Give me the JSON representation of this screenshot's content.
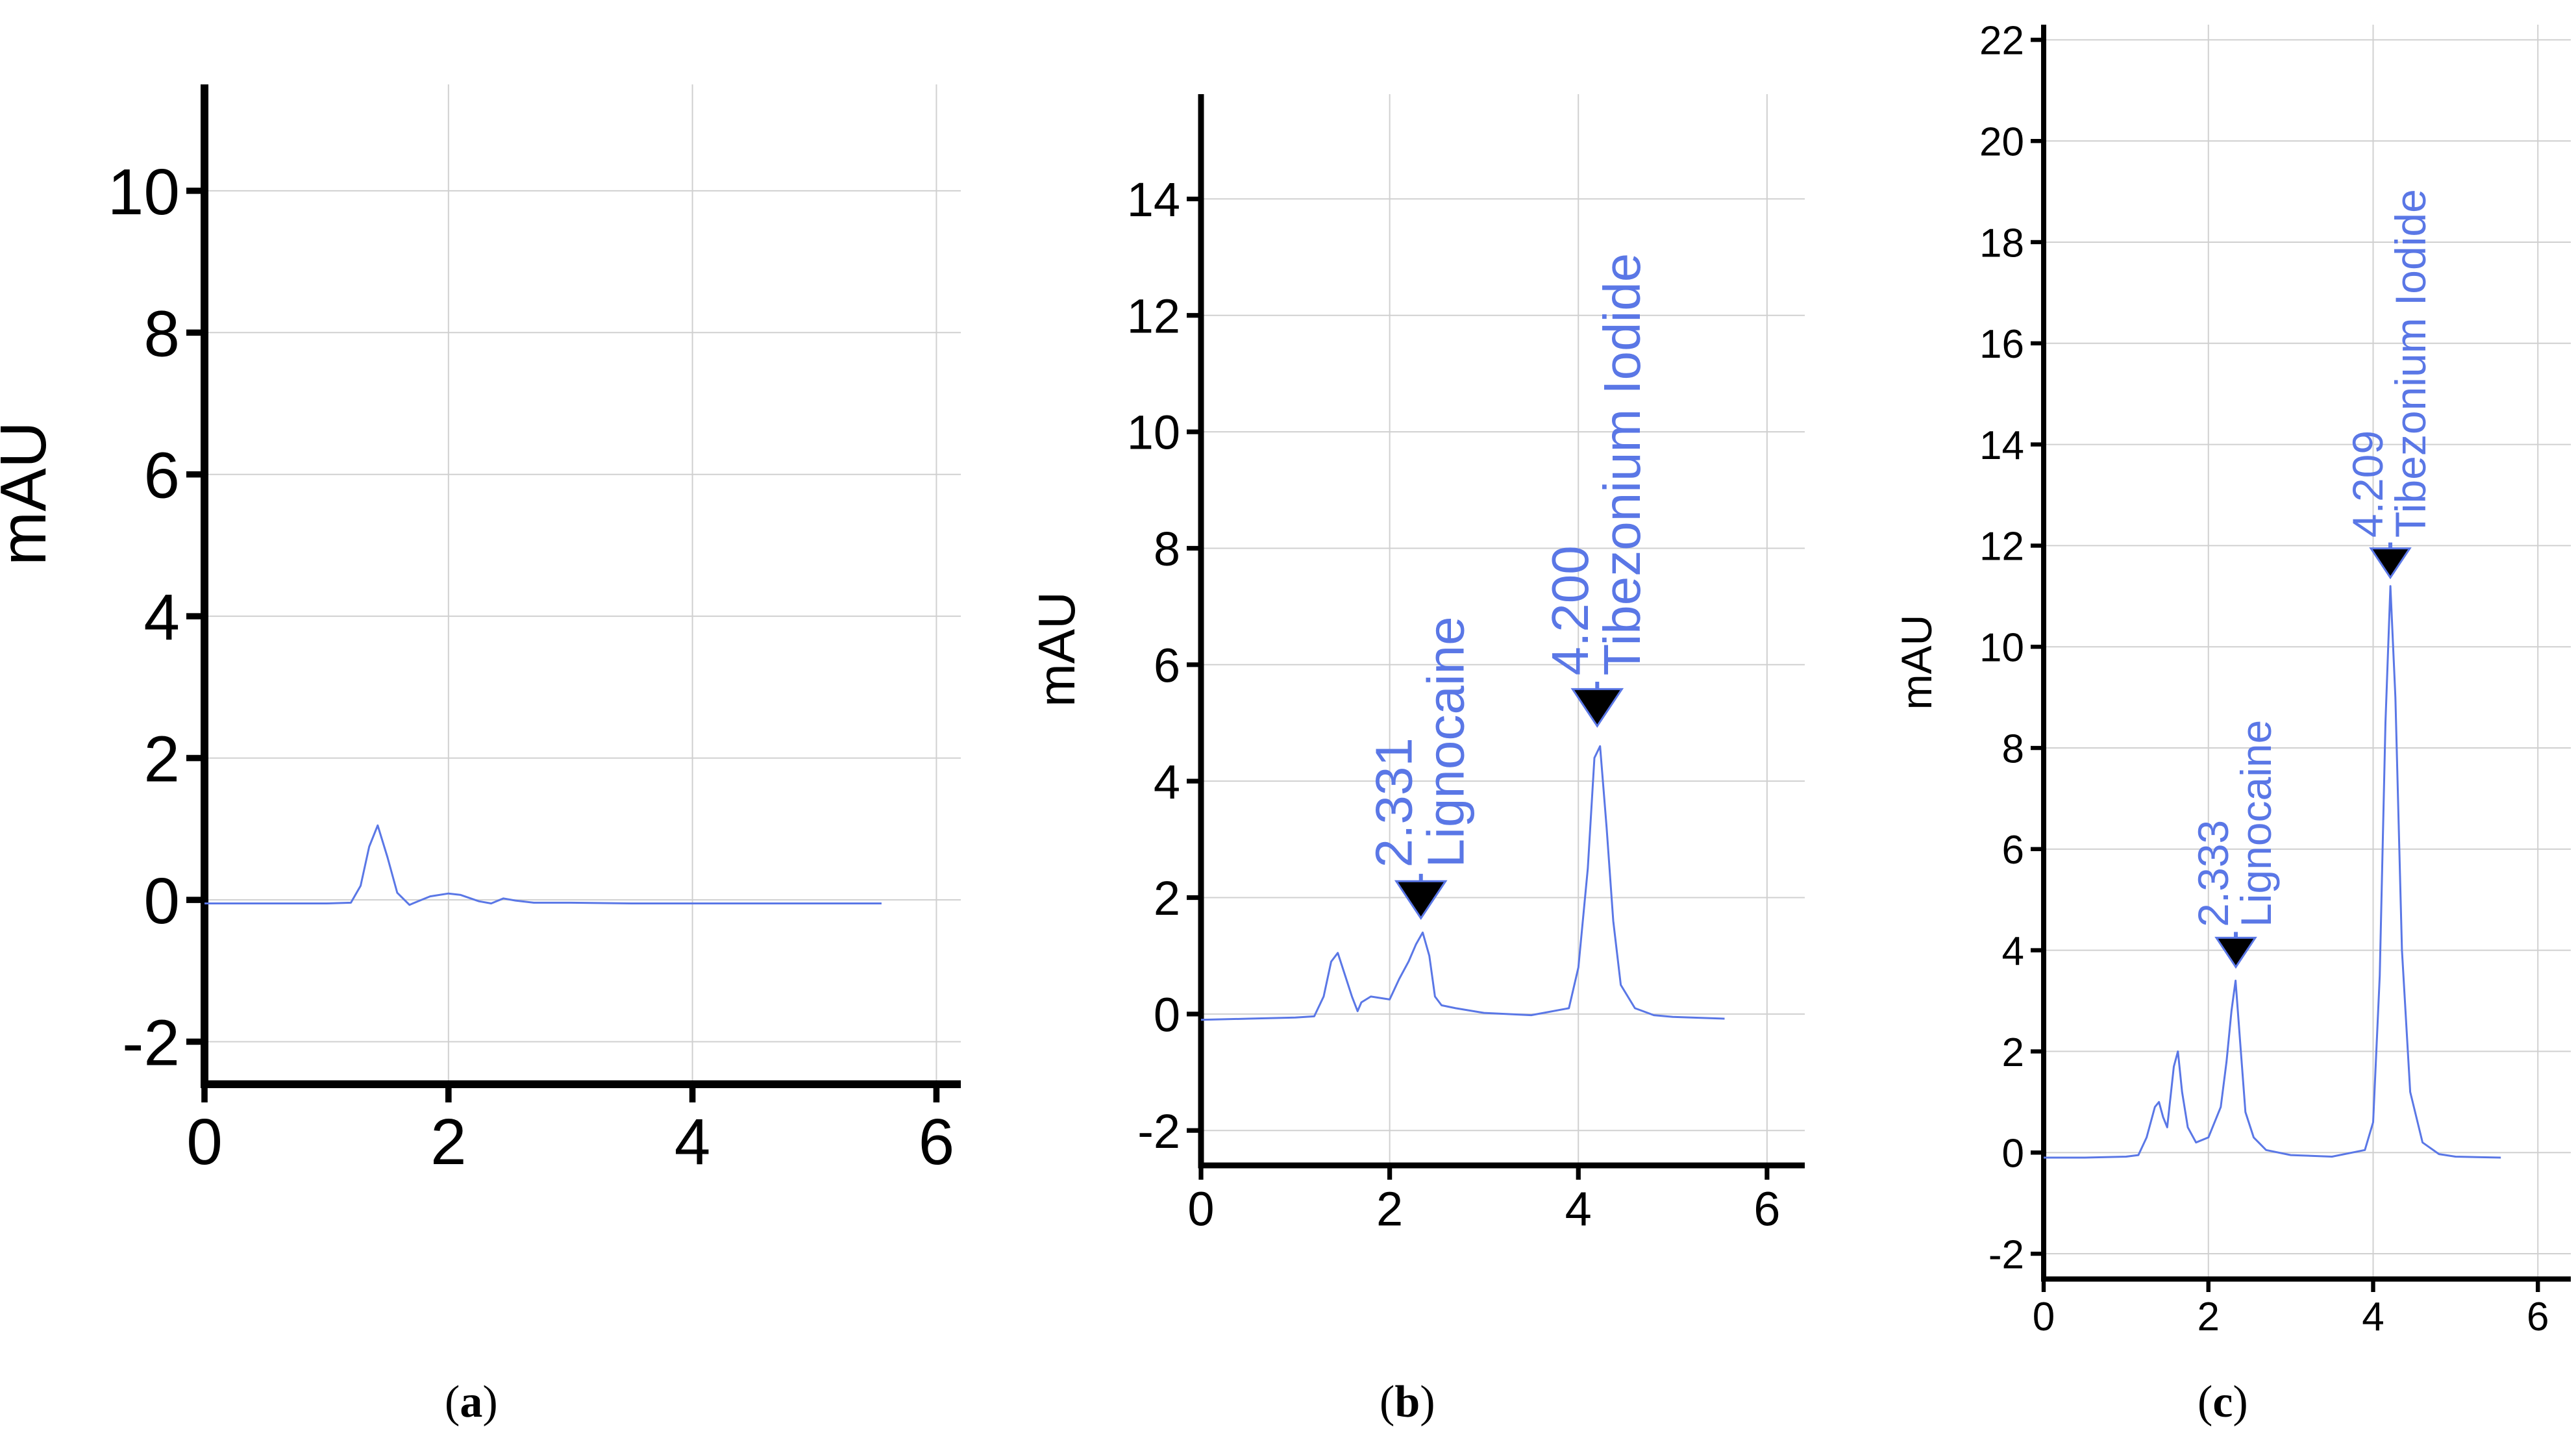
{
  "colors": {
    "trace": "#5a77e6",
    "axis": "#000000",
    "grid": "#d0d0d0",
    "label": "#5a77e6",
    "marker": "#000000"
  },
  "chart_data": [
    {
      "type": "line",
      "panel": "a",
      "ylabel": "mAU",
      "xlim": [
        0,
        6.2
      ],
      "ylim": [
        -2.6,
        11.5
      ],
      "xticks": [
        0,
        2,
        4,
        6
      ],
      "yticks": [
        -2,
        0,
        2,
        4,
        6,
        8,
        10
      ],
      "series": [
        {
          "x": [
            0,
            0.5,
            1.0,
            1.2,
            1.28,
            1.35,
            1.42,
            1.5,
            1.58,
            1.68,
            1.75,
            1.85,
            2.0,
            2.1,
            2.25,
            2.35,
            2.45,
            2.55,
            2.7,
            3.0,
            3.5,
            4.0,
            4.5,
            5.0,
            5.55
          ],
          "y": [
            -0.05,
            -0.05,
            -0.05,
            -0.04,
            0.2,
            0.75,
            1.05,
            0.6,
            0.1,
            -0.07,
            -0.02,
            0.05,
            0.09,
            0.07,
            -0.02,
            -0.05,
            0.02,
            -0.01,
            -0.04,
            -0.04,
            -0.05,
            -0.05,
            -0.05,
            -0.05,
            -0.05
          ]
        }
      ],
      "peaks": []
    },
    {
      "type": "line",
      "panel": "b",
      "ylabel": "mAU",
      "xlim": [
        0,
        6.4
      ],
      "ylim": [
        -2.6,
        15.8
      ],
      "xticks": [
        0,
        2,
        4,
        6
      ],
      "yticks": [
        -2,
        0,
        2,
        4,
        6,
        8,
        10,
        12,
        14
      ],
      "series": [
        {
          "x": [
            0,
            0.5,
            1.0,
            1.2,
            1.3,
            1.38,
            1.45,
            1.52,
            1.6,
            1.66,
            1.7,
            1.8,
            2.0,
            2.1,
            2.2,
            2.28,
            2.35,
            2.42,
            2.48,
            2.55,
            2.7,
            3.0,
            3.5,
            3.9,
            4.0,
            4.1,
            4.17,
            4.23,
            4.3,
            4.37,
            4.45,
            4.6,
            4.8,
            5.0,
            5.55
          ],
          "y": [
            -0.1,
            -0.08,
            -0.06,
            -0.04,
            0.3,
            0.9,
            1.05,
            0.7,
            0.3,
            0.05,
            0.2,
            0.3,
            0.25,
            0.6,
            0.9,
            1.2,
            1.4,
            1.0,
            0.3,
            0.15,
            0.1,
            0.02,
            -0.02,
            0.1,
            0.8,
            2.5,
            4.4,
            4.6,
            3.2,
            1.6,
            0.5,
            0.1,
            -0.02,
            -0.05,
            -0.08
          ]
        }
      ],
      "peaks": [
        {
          "rt": "2.331",
          "name": "Lignocaine",
          "x": 2.331,
          "y": 1.9
        },
        {
          "rt": "4.200",
          "name": "Tibezonium Iodide",
          "x": 4.2,
          "y": 5.2
        }
      ]
    },
    {
      "type": "line",
      "panel": "c",
      "ylabel": "mAU",
      "xlim": [
        0,
        6.4
      ],
      "ylim": [
        -2.5,
        22.3
      ],
      "xticks": [
        0,
        2,
        4,
        6
      ],
      "yticks": [
        -2,
        0,
        2,
        4,
        6,
        8,
        10,
        12,
        14,
        16,
        18,
        20,
        22
      ],
      "series": [
        {
          "x": [
            0,
            0.5,
            1.0,
            1.15,
            1.25,
            1.35,
            1.4,
            1.45,
            1.5,
            1.58,
            1.63,
            1.68,
            1.75,
            1.85,
            2.0,
            2.15,
            2.22,
            2.28,
            2.33,
            2.38,
            2.45,
            2.55,
            2.7,
            3.0,
            3.5,
            3.9,
            4.0,
            4.08,
            4.15,
            4.21,
            4.27,
            4.35,
            4.45,
            4.6,
            4.8,
            5.0,
            5.55
          ],
          "y": [
            -0.1,
            -0.1,
            -0.08,
            -0.05,
            0.3,
            0.9,
            1.0,
            0.7,
            0.5,
            1.7,
            2.0,
            1.2,
            0.5,
            0.2,
            0.3,
            0.9,
            1.8,
            2.8,
            3.4,
            2.3,
            0.8,
            0.3,
            0.05,
            -0.05,
            -0.08,
            0.05,
            0.6,
            3.5,
            8.5,
            11.2,
            9.0,
            4.0,
            1.2,
            0.2,
            -0.03,
            -0.08,
            -0.1
          ]
        }
      ],
      "peaks": [
        {
          "rt": "2.333",
          "name": "Lignocaine",
          "x": 2.333,
          "y": 3.9
        },
        {
          "rt": "4.209",
          "name": "Tibezonium Iodide",
          "x": 4.209,
          "y": 11.6
        }
      ]
    }
  ],
  "captions": {
    "a": "a",
    "b": "b",
    "c": "c"
  }
}
